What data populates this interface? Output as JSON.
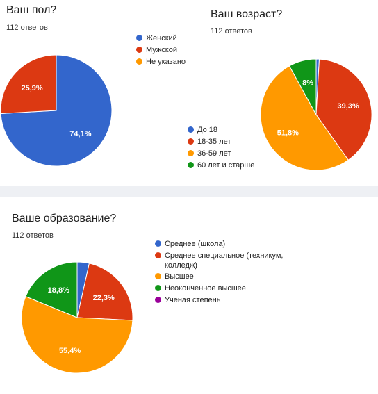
{
  "chart_data": [
    {
      "type": "pie",
      "title": "Ваш пол?",
      "subtitle": "112 ответов",
      "categories": [
        "Женский",
        "Мужской",
        "Не указано"
      ],
      "values": [
        74.1,
        25.9,
        0
      ],
      "data_labels": [
        "74,1%",
        "25,9%",
        ""
      ],
      "colors": [
        "#3366cc",
        "#dc3912",
        "#ff9900"
      ],
      "legend_position": "top-right"
    },
    {
      "type": "pie",
      "title": "Ваш возраст?",
      "subtitle": "112 ответов",
      "categories": [
        "До 18",
        "18-35 лет",
        "36-59 лет",
        "60 лет и старше"
      ],
      "values": [
        0.9,
        39.3,
        51.8,
        8
      ],
      "data_labels": [
        "",
        "39,3%",
        "51,8%",
        "8%"
      ],
      "colors": [
        "#3366cc",
        "#dc3912",
        "#ff9900",
        "#109618"
      ],
      "legend_position": "bottom-left"
    },
    {
      "type": "pie",
      "title": "Ваше образование?",
      "subtitle": "112 ответов",
      "categories": [
        "Среднее (школа)",
        "Среднее специальное (техникум, колледж)",
        "Высшее",
        "Неоконченное высшее",
        "Ученая степень"
      ],
      "values": [
        3.5,
        22.3,
        55.4,
        18.8,
        0
      ],
      "data_labels": [
        "",
        "22,3%",
        "55,4%",
        "18,8%",
        ""
      ],
      "colors": [
        "#3366cc",
        "#dc3912",
        "#ff9900",
        "#109618",
        "#990099"
      ],
      "legend_position": "top-right"
    }
  ]
}
